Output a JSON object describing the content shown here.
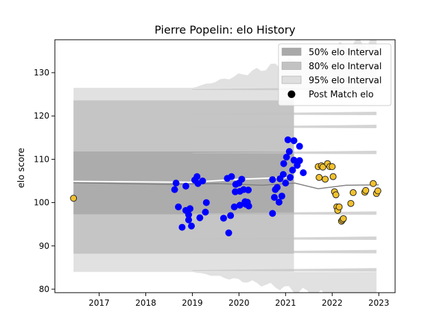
{
  "chart_data": {
    "type": "scatter",
    "title": "Pierre Popelin: elo History",
    "xlabel": "",
    "ylabel": "elo score",
    "xlim": [
      2016.05,
      2023.35
    ],
    "ylim": [
      79.2,
      137.6
    ],
    "x_ticks": [
      2017,
      2018,
      2019,
      2020,
      2021,
      2022,
      2023
    ],
    "x_tick_labels": [
      "2017",
      "2018",
      "2019",
      "2020",
      "2021",
      "2022",
      "2023"
    ],
    "y_ticks": [
      80,
      90,
      100,
      110,
      120,
      130
    ],
    "y_tick_labels": [
      "80",
      "90",
      "100",
      "110",
      "120",
      "130"
    ],
    "legend_position": "top-right",
    "legend": [
      {
        "label": "50% elo Interval",
        "kind": "band",
        "color": "#a9a9a9"
      },
      {
        "label": "80% elo Interval",
        "kind": "band",
        "color": "#c2c2c2"
      },
      {
        "label": "95% elo Interval",
        "kind": "band",
        "color": "#dedede"
      },
      {
        "label": "Post Match elo",
        "kind": "marker",
        "color": "#000000"
      }
    ],
    "colors": {
      "band50": "#a9a9a9",
      "band80": "#c2c2c2",
      "band95": "#dedede",
      "blue_points": "#0000ff",
      "gold_points": "#f2c12e",
      "gold_edge": "#222222",
      "white_line": "#ffffff",
      "gray_line": "#808080"
    },
    "bands": {
      "x": [
        2016.45,
        2021.18
      ],
      "band50": [
        97.3,
        111.8
      ],
      "band80": [
        88.2,
        123.6
      ],
      "band95": [
        84.0,
        126.5
      ],
      "late_x": [
        2019.0,
        2022.95
      ],
      "late_upper": [
        126.5,
        138.0
      ],
      "late_lower": [
        84.0,
        76.5
      ]
    },
    "series": [
      {
        "name": "Post Match elo",
        "points": [
          [
            2016.45,
            101.0
          ],
          [
            2018.62,
            103.0
          ],
          [
            2018.65,
            104.5
          ],
          [
            2018.7,
            99.0
          ],
          [
            2018.78,
            94.3
          ],
          [
            2018.86,
            103.8
          ],
          [
            2018.86,
            98.2
          ],
          [
            2018.92,
            96.0
          ],
          [
            2018.92,
            97.2
          ],
          [
            2018.95,
            98.6
          ],
          [
            2018.98,
            94.6
          ],
          [
            2019.05,
            105.2
          ],
          [
            2019.1,
            106.0
          ],
          [
            2019.12,
            104.4
          ],
          [
            2019.16,
            96.5
          ],
          [
            2019.22,
            105.0
          ],
          [
            2019.28,
            97.8
          ],
          [
            2019.3,
            100.0
          ],
          [
            2019.67,
            96.4
          ],
          [
            2019.75,
            105.6
          ],
          [
            2019.78,
            93.0
          ],
          [
            2019.82,
            97.0
          ],
          [
            2019.84,
            106.0
          ],
          [
            2019.9,
            99.0
          ],
          [
            2019.92,
            102.5
          ],
          [
            2019.93,
            104.2
          ],
          [
            2020.0,
            104.5
          ],
          [
            2020.02,
            102.6
          ],
          [
            2020.02,
            99.4
          ],
          [
            2020.06,
            105.4
          ],
          [
            2020.1,
            103.0
          ],
          [
            2020.13,
            100.2
          ],
          [
            2020.15,
            99.6
          ],
          [
            2020.18,
            100.1
          ],
          [
            2020.2,
            102.9
          ],
          [
            2020.21,
            99.2
          ],
          [
            2020.72,
            97.5
          ],
          [
            2020.72,
            105.3
          ],
          [
            2020.76,
            101.2
          ],
          [
            2020.78,
            103.0
          ],
          [
            2020.82,
            103.5
          ],
          [
            2020.86,
            100.1
          ],
          [
            2020.88,
            105.5
          ],
          [
            2020.92,
            101.5
          ],
          [
            2020.95,
            106.5
          ],
          [
            2020.96,
            109.0
          ],
          [
            2021.0,
            104.5
          ],
          [
            2021.02,
            110.5
          ],
          [
            2021.05,
            114.5
          ],
          [
            2021.08,
            111.8
          ],
          [
            2021.1,
            105.8
          ],
          [
            2021.15,
            107.5
          ],
          [
            2021.18,
            114.3
          ],
          [
            2021.18,
            109.8
          ],
          [
            2021.25,
            108.6
          ],
          [
            2021.3,
            113.0
          ],
          [
            2021.3,
            109.7
          ],
          [
            2021.38,
            106.9
          ]
        ]
      },
      {
        "name": "",
        "points": [
          [
            2021.7,
            108.3
          ],
          [
            2021.72,
            105.8
          ],
          [
            2021.77,
            108.5
          ],
          [
            2021.8,
            108.2
          ],
          [
            2021.85,
            105.4
          ],
          [
            2021.9,
            109.0
          ],
          [
            2021.95,
            108.3
          ],
          [
            2022.0,
            108.3
          ],
          [
            2022.02,
            106.0
          ],
          [
            2022.05,
            102.5
          ],
          [
            2022.08,
            101.8
          ],
          [
            2022.1,
            99.0
          ],
          [
            2022.12,
            98.2
          ],
          [
            2022.15,
            99.0
          ],
          [
            2022.2,
            95.7
          ],
          [
            2022.22,
            96.0
          ],
          [
            2022.24,
            96.3
          ],
          [
            2022.4,
            99.8
          ],
          [
            2022.45,
            102.3
          ],
          [
            2022.7,
            102.4
          ],
          [
            2022.72,
            102.8
          ],
          [
            2022.88,
            104.4
          ],
          [
            2022.95,
            102.1
          ],
          [
            2022.98,
            102.7
          ]
        ]
      }
    ],
    "line_white": [
      [
        2016.45,
        104.9
      ],
      [
        2019.0,
        104.7
      ],
      [
        2020.0,
        105.4
      ],
      [
        2021.0,
        105.8
      ],
      [
        2021.4,
        105.2
      ],
      [
        2021.8,
        105.5
      ]
    ],
    "line_gray": [
      [
        2016.45,
        104.6
      ],
      [
        2018.5,
        104.2
      ],
      [
        2019.5,
        104.4
      ],
      [
        2020.5,
        104.0
      ],
      [
        2021.2,
        104.5
      ],
      [
        2021.7,
        103.2
      ],
      [
        2022.3,
        104.0
      ],
      [
        2023.0,
        104.1
      ]
    ]
  }
}
